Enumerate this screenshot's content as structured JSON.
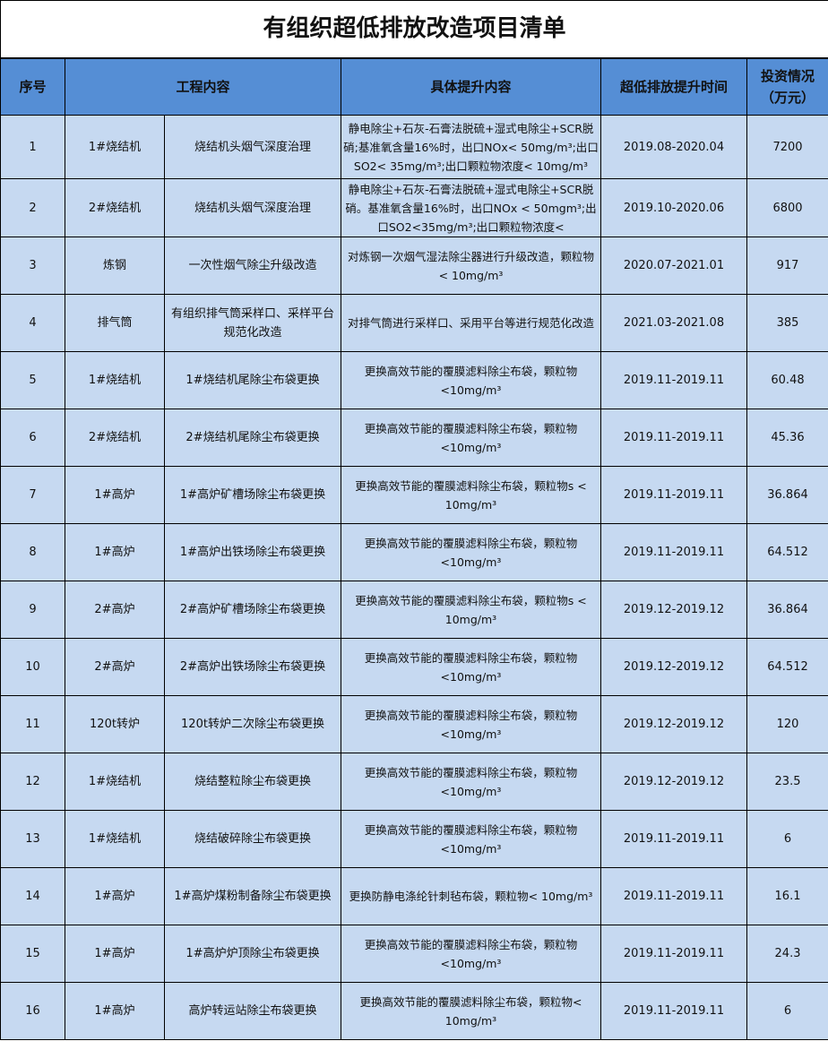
{
  "title": "有组织超低排放改造项目清单",
  "headers": {
    "index": "序号",
    "project": "工程内容",
    "detail": "具体提升内容",
    "time": "超低排放提升时间",
    "investment": "投资情况（万元）"
  },
  "rows": [
    {
      "no": "1",
      "unit": "1#烧结机",
      "project": "烧结机头烟气深度治理",
      "detail": "静电除尘+石灰-石膏法脱硫+湿式电除尘+SCR脱硝;基准氧含量16%时，出口NOx< 50mg/m³;出口SO2< 35mg/m³;出口颗粒物浓度< 10mg/m³",
      "time": "2019.08-2020.04",
      "investment": "7200"
    },
    {
      "no": "2",
      "unit": "2#烧结机",
      "project": "烧结机头烟气深度治理",
      "detail": "静电除尘+石灰-石膏法脱硫+湿式电除尘+SCR脱硝。基准氧含量16%时，出口NOx < 50mgm³;出口SO2<35mg/m³;出口颗粒物浓度<",
      "time": "2019.10-2020.06",
      "investment": "6800"
    },
    {
      "no": "3",
      "unit": "炼钢",
      "project": "一次性烟气除尘升级改造",
      "detail": "对炼钢一次烟气湿法除尘器进行升级改造，颗粒物< 10mg/m³",
      "time": "2020.07-2021.01",
      "investment": "917"
    },
    {
      "no": "4",
      "unit": "排气筒",
      "project": "有组织排气筒采样口、采样平台规范化改造",
      "detail": "对排气筒进行采样口、采用平台等进行规范化改造",
      "time": "2021.03-2021.08",
      "investment": "385"
    },
    {
      "no": "5",
      "unit": "1#烧结机",
      "project": "1#烧结机尾除尘布袋更换",
      "detail": "更换高效节能的覆膜滤料除尘布袋，颗粒物<10mg/m³",
      "time": "2019.11-2019.11",
      "investment": "60.48"
    },
    {
      "no": "6",
      "unit": "2#烧结机",
      "project": "2#烧结机尾除尘布袋更换",
      "detail": "更换高效节能的覆膜滤料除尘布袋，颗粒物<10mg/m³",
      "time": "2019.11-2019.11",
      "investment": "45.36"
    },
    {
      "no": "7",
      "unit": "1#高炉",
      "project": "1#高炉矿槽场除尘布袋更换",
      "detail": "更换高效节能的覆膜滤料除尘布袋，颗粒物s < 10mg/m³",
      "time": "2019.11-2019.11",
      "investment": "36.864"
    },
    {
      "no": "8",
      "unit": "1#高炉",
      "project": "1#高炉出铁场除尘布袋更换",
      "detail": "更换高效节能的覆膜滤料除尘布袋，颗粒物<10mg/m³",
      "time": "2019.11-2019.11",
      "investment": "64.512"
    },
    {
      "no": "9",
      "unit": "2#高炉",
      "project": "2#高炉矿槽场除尘布袋更换",
      "detail": "更换高效节能的覆膜滤料除尘布袋，颗粒物s < 10mg/m³",
      "time": "2019.12-2019.12",
      "investment": "36.864"
    },
    {
      "no": "10",
      "unit": "2#高炉",
      "project": "2#高炉出铁场除尘布袋更换",
      "detail": "更换高效节能的覆膜滤料除尘布袋，颗粒物<10mg/m³",
      "time": "2019.12-2019.12",
      "investment": "64.512"
    },
    {
      "no": "11",
      "unit": "120t转炉",
      "project": "120t转炉二次除尘布袋更换",
      "detail": "更换高效节能的覆膜滤料除尘布袋，颗粒物<10mg/m³",
      "time": "2019.12-2019.12",
      "investment": "120"
    },
    {
      "no": "12",
      "unit": "1#烧结机",
      "project": "烧结整粒除尘布袋更换",
      "detail": "更换高效节能的覆膜滤料除尘布袋，颗粒物<10mg/m³",
      "time": "2019.12-2019.12",
      "investment": "23.5"
    },
    {
      "no": "13",
      "unit": "1#烧结机",
      "project": "烧结破碎除尘布袋更换",
      "detail": "更换高效节能的覆膜滤料除尘布袋，颗粒物<10mg/m³",
      "time": "2019.11-2019.11",
      "investment": "6"
    },
    {
      "no": "14",
      "unit": "1#高炉",
      "project": "1#高炉煤粉制备除尘布袋更换",
      "detail": "更换防静电涤纶针刺毡布袋，颗粒物< 10mg/m³",
      "time": "2019.11-2019.11",
      "investment": "16.1"
    },
    {
      "no": "15",
      "unit": "1#高炉",
      "project": "1#高炉炉顶除尘布袋更换",
      "detail": "更换高效节能的覆膜滤料除尘布袋，颗粒物<10mg/m³",
      "time": "2019.11-2019.11",
      "investment": "24.3"
    },
    {
      "no": "16",
      "unit": "1#高炉",
      "project": "高炉转运站除尘布袋更换",
      "detail": "更换高效节能的覆膜滤料除尘布袋，颗粒物< 10mg/m³",
      "time": "2019.11-2019.11",
      "investment": "6"
    }
  ]
}
